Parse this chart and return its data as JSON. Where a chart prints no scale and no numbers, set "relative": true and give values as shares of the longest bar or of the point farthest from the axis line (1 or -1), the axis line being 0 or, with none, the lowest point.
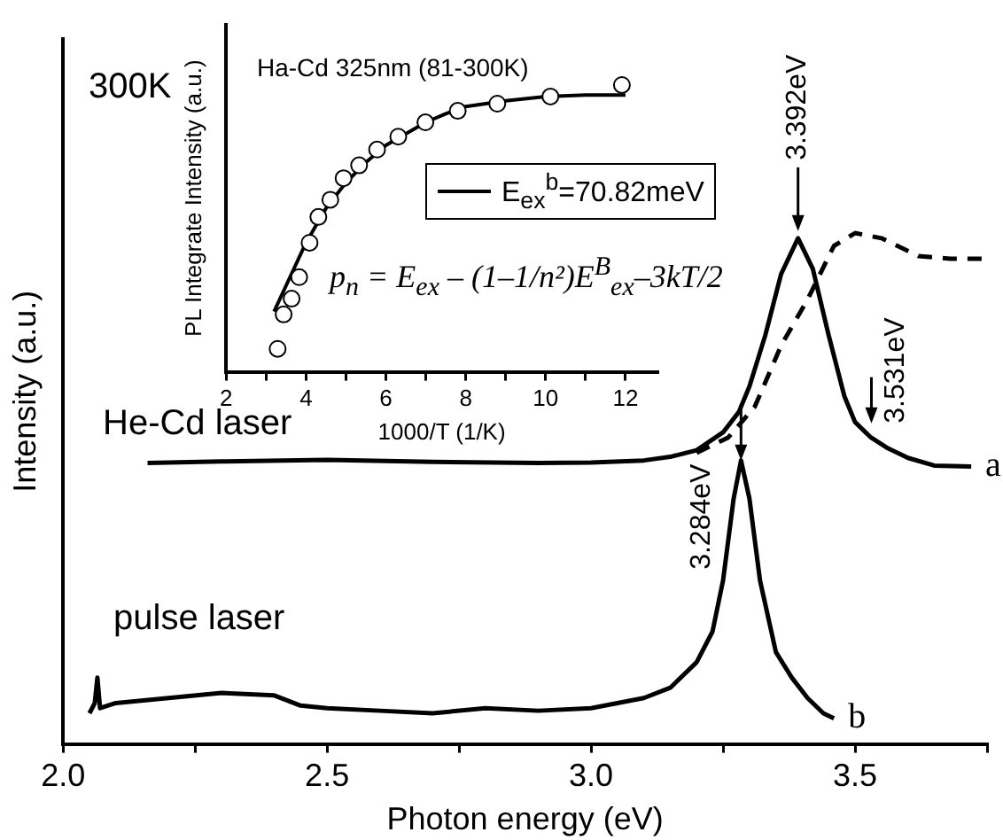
{
  "chart_data": [
    {
      "type": "line",
      "xlabel": "Photon energy (eV)",
      "ylabel": "Intensity (a.u.)",
      "relative": true,
      "marker": "none",
      "legend": false,
      "xlim": [
        2.0,
        3.75
      ],
      "xticks": [
        {
          "value": 2.0,
          "label": "2.0"
        },
        {
          "value": 2.25,
          "label": null
        },
        {
          "value": 2.5,
          "label": "2.5"
        },
        {
          "value": 2.75,
          "label": null
        },
        {
          "value": 3.0,
          "label": "3.0"
        },
        {
          "value": 3.25,
          "label": null
        },
        {
          "value": 3.5,
          "label": "3.5"
        },
        {
          "value": 3.75,
          "label": null
        }
      ],
      "series": [
        {
          "name": "a",
          "color": "#000000",
          "line_style": "solid",
          "x": [
            2.16,
            2.3,
            2.5,
            2.7,
            2.9,
            3.0,
            3.1,
            3.15,
            3.2,
            3.25,
            3.28,
            3.3,
            3.33,
            3.36,
            3.392,
            3.42,
            3.45,
            3.48,
            3.5,
            3.53,
            3.56,
            3.6,
            3.65,
            3.72
          ],
          "values": [
            0.55,
            0.553,
            0.556,
            0.552,
            0.55,
            0.551,
            0.555,
            0.562,
            0.575,
            0.61,
            0.65,
            0.7,
            0.8,
            0.92,
            0.99,
            0.93,
            0.8,
            0.68,
            0.63,
            0.6,
            0.58,
            0.56,
            0.545,
            0.543
          ]
        },
        {
          "color": "#000000",
          "line_style": "dashed",
          "x": [
            3.2,
            3.26,
            3.31,
            3.36,
            3.41,
            3.46,
            3.5,
            3.55,
            3.62,
            3.68,
            3.75
          ],
          "values": [
            0.57,
            0.6,
            0.66,
            0.78,
            0.87,
            0.975,
            1.0,
            0.99,
            0.955,
            0.95,
            0.95
          ]
        },
        {
          "name": "b",
          "color": "#000000",
          "line_style": "solid",
          "x": [
            2.05,
            2.06,
            2.065,
            2.07,
            2.1,
            2.2,
            2.3,
            2.4,
            2.45,
            2.5,
            2.6,
            2.7,
            2.8,
            2.9,
            3.0,
            3.1,
            3.15,
            3.2,
            3.23,
            3.25,
            3.27,
            3.284,
            3.3,
            3.32,
            3.35,
            3.38,
            3.41,
            3.44,
            3.46
          ],
          "values": [
            0.06,
            0.08,
            0.13,
            0.07,
            0.08,
            0.09,
            0.1,
            0.095,
            0.075,
            0.07,
            0.065,
            0.06,
            0.07,
            0.065,
            0.07,
            0.09,
            0.11,
            0.16,
            0.22,
            0.32,
            0.48,
            0.555,
            0.48,
            0.32,
            0.18,
            0.13,
            0.09,
            0.06,
            0.05
          ]
        }
      ],
      "annotations": [
        "300K",
        "He-Cd laser",
        "pulse laser",
        {
          "text": "3.392eV",
          "x": 3.392,
          "y": 0.99
        },
        {
          "text": "3.531eV",
          "x": 3.531,
          "y": 0.6
        },
        {
          "text": "3.284eV",
          "x": 3.284,
          "y": 0.555
        }
      ]
    },
    {
      "type": "scatter",
      "xlabel": "1000/T (1/K)",
      "ylabel": "PL Integrate Intensity (a.u.)",
      "relative": true,
      "legend": "right",
      "xlim": [
        2,
        12.8
      ],
      "xticks": [
        2,
        {
          "value": 3,
          "label": null
        },
        4,
        {
          "value": 5,
          "label": null
        },
        6,
        {
          "value": 7,
          "label": null
        },
        8,
        {
          "value": 9,
          "label": null
        },
        10,
        {
          "value": 11,
          "label": null
        },
        12
      ],
      "series": [
        {
          "marker": "circle",
          "color": "#000000",
          "x": [
            3.29,
            3.44,
            3.64,
            3.83,
            4.09,
            4.31,
            4.61,
            4.94,
            5.33,
            5.78,
            6.31,
            6.99,
            7.8,
            8.79,
            10.12,
            11.91
          ],
          "values": [
            0.08,
            0.2,
            0.255,
            0.33,
            0.45,
            0.54,
            0.6,
            0.675,
            0.72,
            0.775,
            0.82,
            0.87,
            0.91,
            0.935,
            0.96,
            1.0
          ]
        },
        {
          "type": "line",
          "marker": "none",
          "name": "E$_{ex}$$^{b}$=70.82meV",
          "color": "#000000",
          "x": [
            3.2,
            3.5,
            4,
            4.5,
            5,
            5.5,
            6,
            6.5,
            7,
            7.5,
            8,
            9,
            10,
            11,
            12
          ],
          "values": [
            0.21,
            0.3,
            0.45,
            0.57,
            0.66,
            0.73,
            0.79,
            0.83,
            0.87,
            0.9,
            0.925,
            0.945,
            0.96,
            0.965,
            0.965
          ]
        }
      ],
      "annotations": [
        "Ha-Cd 325nm (81-300K)",
        "p$_{n}$ = E$_{ex}$ – (1–1/n²)E$^{B}$$_{ex}$–3kT/2"
      ]
    }
  ]
}
